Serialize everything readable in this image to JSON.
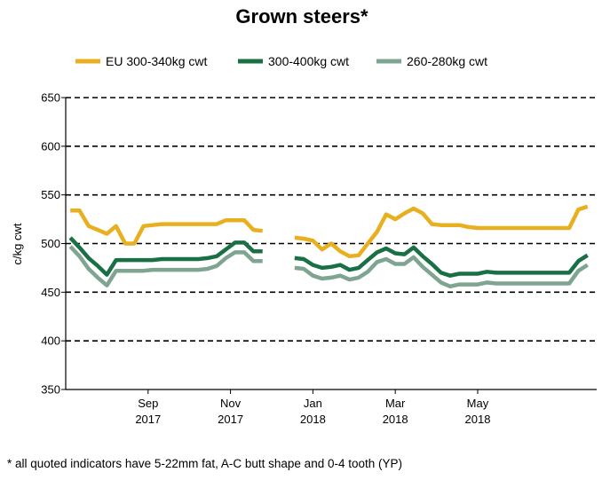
{
  "chart_data": {
    "type": "line",
    "title": "Grown steers*",
    "xlabel": "",
    "ylabel": "c/kg cwt",
    "ylim": [
      350,
      650
    ],
    "yticks": [
      350,
      400,
      450,
      500,
      550,
      600,
      650
    ],
    "grid": "horizontal-dashed",
    "legend_position": "top",
    "xlim": [
      0,
      58
    ],
    "xtick_labels": [
      {
        "x": 9,
        "line1": "Sep",
        "line2": "2017"
      },
      {
        "x": 18,
        "line1": "Nov",
        "line2": "2017"
      },
      {
        "x": 27,
        "line1": "Jan",
        "line2": "2018"
      },
      {
        "x": 36,
        "line1": "Mar",
        "line2": "2018"
      },
      {
        "x": 45,
        "line1": "May",
        "line2": "2018"
      }
    ],
    "series": [
      {
        "name": "EU 300-340kg cwt",
        "color": "#E8B020",
        "segments": [
          {
            "x": [
              0.5,
              1.5,
              2.5,
              3.5,
              4.5,
              5.5,
              6.5,
              7.5,
              8.5,
              9.5,
              10.5,
              11.5,
              12.5,
              13.5,
              14.5,
              15.5,
              16.5,
              17.5,
              18.5,
              19.5,
              20.5,
              21.5
            ],
            "y": [
              534,
              534,
              518,
              514,
              510,
              518,
              500,
              500,
              518,
              519,
              520,
              520,
              520,
              520,
              520,
              520,
              520,
              524,
              524,
              524,
              514,
              513
            ]
          },
          {
            "x": [
              25,
              26,
              27,
              28,
              29,
              30,
              31,
              32,
              33,
              34,
              35,
              36,
              37,
              38,
              39,
              40,
              41,
              42,
              43,
              44,
              45,
              46,
              47,
              48,
              49,
              50,
              51,
              52,
              53,
              54,
              55,
              56,
              57
            ],
            "y": [
              506,
              505,
              503,
              494,
              500,
              492,
              487,
              488,
              500,
              512,
              530,
              525,
              531,
              536,
              531,
              520,
              519,
              519,
              519,
              517,
              516,
              516,
              516,
              516,
              516,
              516,
              516,
              516,
              516,
              516,
              516,
              535,
              538
            ]
          }
        ]
      },
      {
        "name": "300-400kg cwt",
        "color": "#1A7045",
        "segments": [
          {
            "x": [
              0.5,
              1.5,
              2.5,
              3.5,
              4.5,
              5.5,
              6.5,
              7.5,
              8.5,
              9.5,
              10.5,
              11.5,
              12.5,
              13.5,
              14.5,
              15.5,
              16.5,
              17.5,
              18.5,
              19.5,
              20.5,
              21.5
            ],
            "y": [
              506,
              496,
              485,
              477,
              468,
              483,
              483,
              483,
              483,
              483,
              484,
              484,
              484,
              484,
              484,
              485,
              487,
              494,
              501,
              501,
              492,
              492
            ]
          },
          {
            "x": [
              25,
              26,
              27,
              28,
              29,
              30,
              31,
              32,
              33,
              34,
              35,
              36,
              37,
              38,
              39,
              40,
              41,
              42,
              43,
              44,
              45,
              46,
              47,
              48,
              49,
              50,
              51,
              52,
              53,
              54,
              55,
              56,
              57
            ],
            "y": [
              485,
              484,
              478,
              475,
              476,
              478,
              473,
              475,
              483,
              491,
              495,
              490,
              489,
              496,
              487,
              479,
              470,
              467,
              469,
              469,
              469,
              471,
              470,
              470,
              470,
              470,
              470,
              470,
              470,
              470,
              470,
              482,
              488
            ]
          }
        ]
      },
      {
        "name": "260-280kg cwt",
        "color": "#7FA592",
        "segments": [
          {
            "x": [
              0.5,
              1.5,
              2.5,
              3.5,
              4.5,
              5.5,
              6.5,
              7.5,
              8.5,
              9.5,
              10.5,
              11.5,
              12.5,
              13.5,
              14.5,
              15.5,
              16.5,
              17.5,
              18.5,
              19.5,
              20.5,
              21.5
            ],
            "y": [
              497,
              487,
              474,
              465,
              457,
              472,
              472,
              472,
              472,
              473,
              473,
              473,
              473,
              473,
              473,
              474,
              477,
              485,
              491,
              491,
              482,
              482
            ]
          },
          {
            "x": [
              25,
              26,
              27,
              28,
              29,
              30,
              31,
              32,
              33,
              34,
              35,
              36,
              37,
              38,
              39,
              40,
              41,
              42,
              43,
              44,
              45,
              46,
              47,
              48,
              49,
              50,
              51,
              52,
              53,
              54,
              55,
              56,
              57
            ],
            "y": [
              475,
              474,
              467,
              464,
              465,
              467,
              463,
              465,
              471,
              481,
              484,
              479,
              479,
              486,
              476,
              468,
              460,
              456,
              458,
              458,
              458,
              460,
              459,
              459,
              459,
              459,
              459,
              459,
              459,
              459,
              459,
              472,
              478
            ]
          }
        ]
      }
    ]
  },
  "footnote": "* all quoted indicators have 5-22mm fat, A-C butt shape and 0-4 tooth (YP)"
}
